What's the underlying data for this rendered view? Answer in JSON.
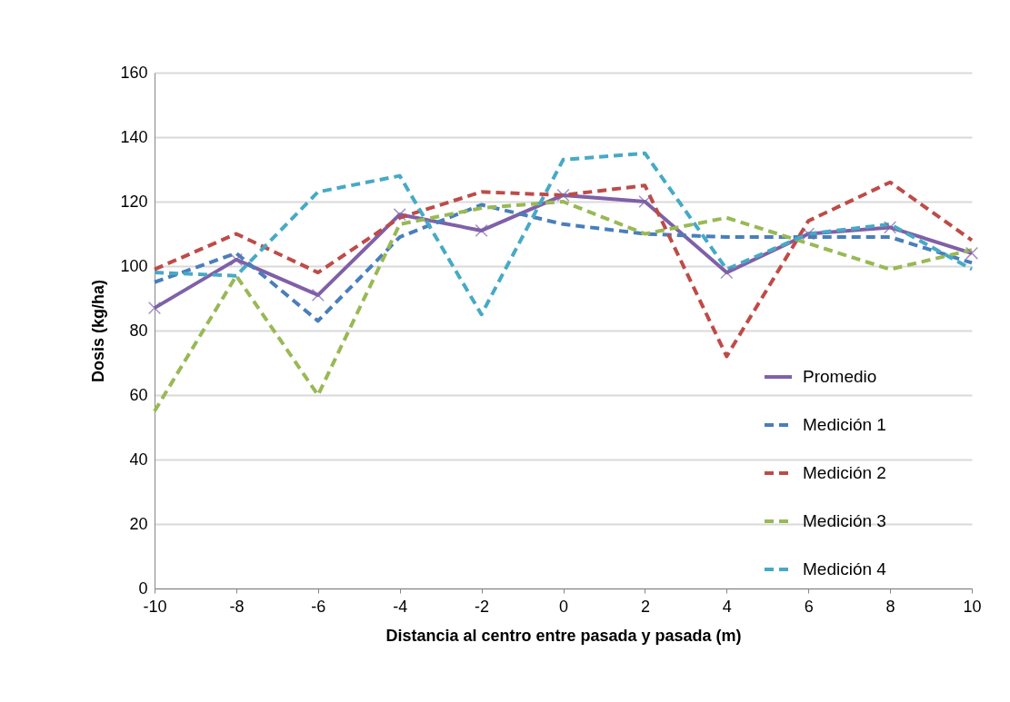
{
  "chart_data": {
    "type": "line",
    "xlabel": "Distancia al centro entre pasada y pasada (m)",
    "ylabel": "Dosis (kg/ha)",
    "x": [
      -10,
      -8,
      -6,
      -4,
      -2,
      0,
      2,
      4,
      6,
      8,
      10
    ],
    "series": [
      {
        "name": "Promedio",
        "color": "#7f60a8",
        "marker": "cross",
        "line_style": "solid",
        "values": [
          87,
          102,
          91,
          116,
          111,
          122,
          120,
          98,
          110,
          112,
          104
        ]
      },
      {
        "name": "Medición 1",
        "color": "#4a7ebb",
        "line_style": "dashed",
        "values": [
          95,
          104,
          83,
          109,
          119,
          113,
          110,
          109,
          109,
          109,
          101
        ]
      },
      {
        "name": "Medición 2",
        "color": "#be4b48",
        "line_style": "dashed",
        "values": [
          99,
          110,
          98,
          115,
          123,
          122,
          125,
          72,
          114,
          126,
          108
        ]
      },
      {
        "name": "Medición 3",
        "color": "#98b954",
        "line_style": "dashed",
        "values": [
          55,
          97,
          60,
          113,
          118,
          120,
          110,
          115,
          107,
          99,
          105
        ]
      },
      {
        "name": "Medición 4",
        "color": "#46aac5",
        "line_style": "dashed",
        "values": [
          98,
          97,
          123,
          128,
          85,
          133,
          135,
          99,
          110,
          113,
          99
        ]
      }
    ],
    "xlim": [
      -10,
      10
    ],
    "xticks": [
      -10,
      -8,
      -6,
      -4,
      -2,
      0,
      2,
      4,
      6,
      8,
      10
    ],
    "ylim": [
      0,
      160
    ],
    "yticks": [
      0,
      20,
      40,
      60,
      80,
      100,
      120,
      140,
      160
    ],
    "grid": "y",
    "legend": "right"
  }
}
